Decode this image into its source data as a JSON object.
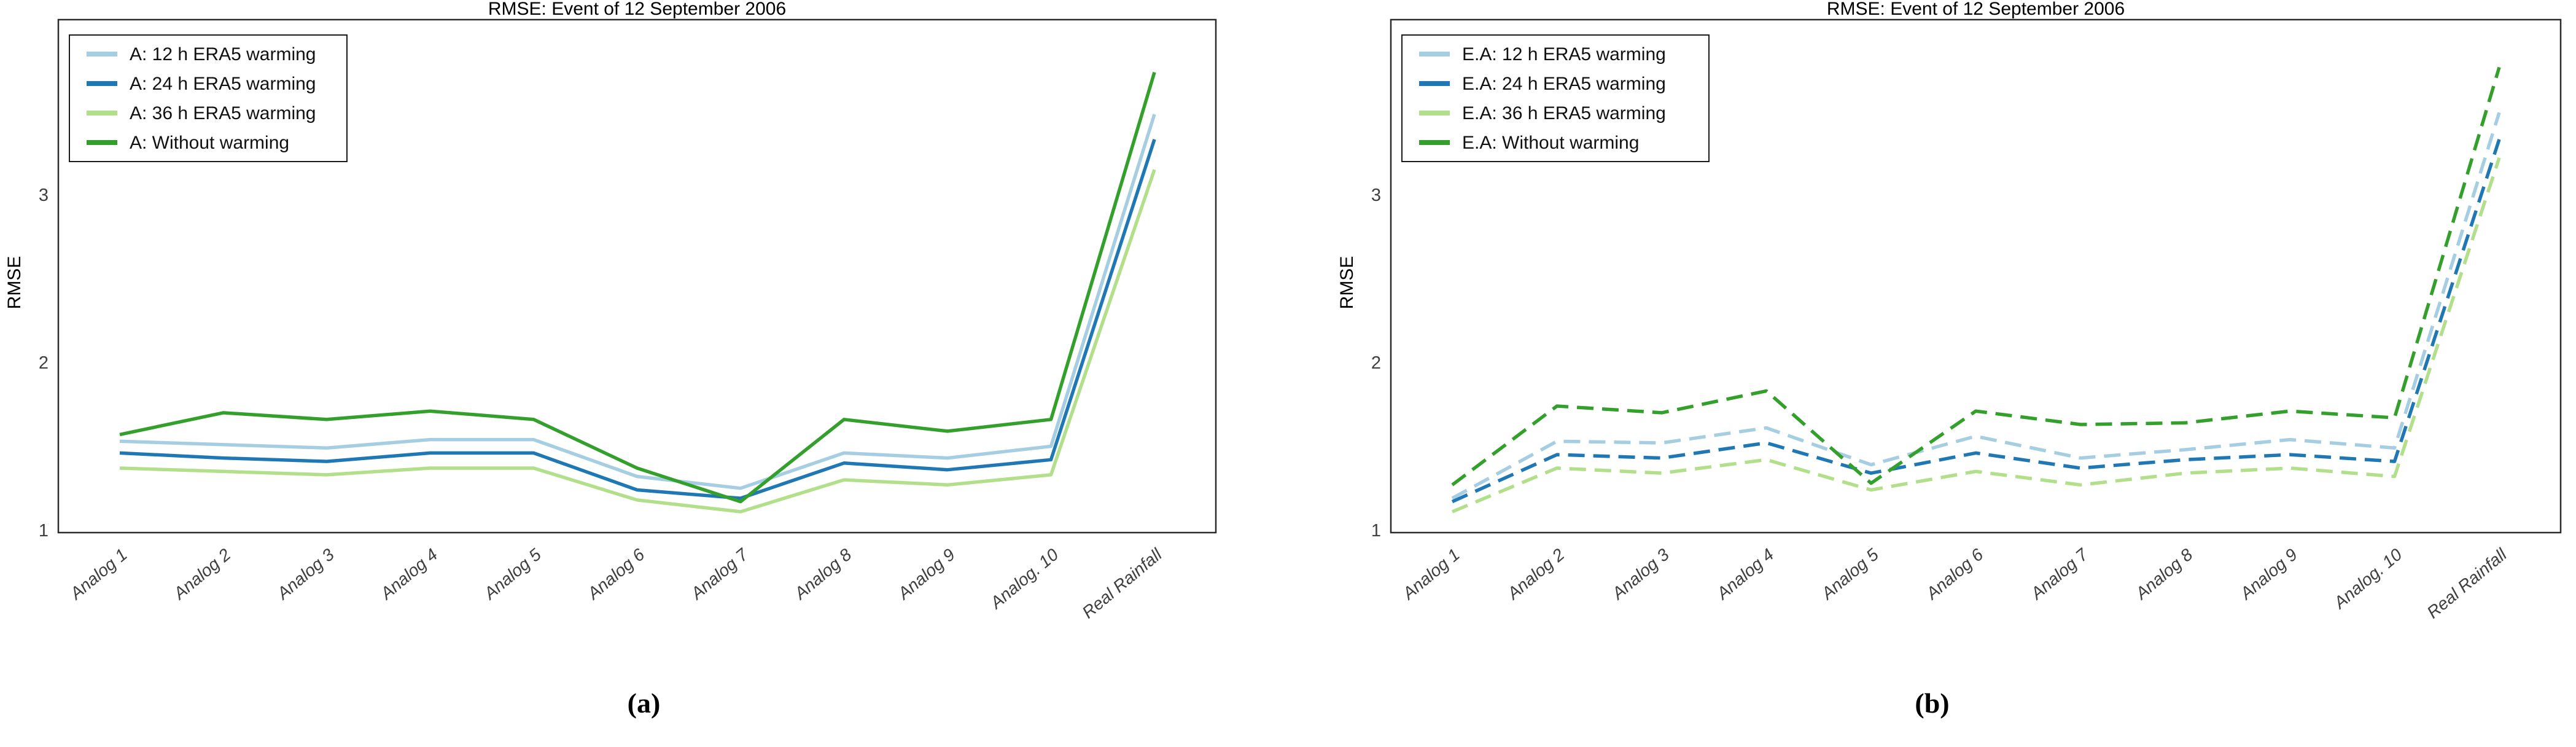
{
  "page": {
    "background": "#ffffff",
    "text_color": "#000000",
    "axis_color": "#2b2b2b",
    "tick_label_color": "#3f3f3f"
  },
  "figure": {
    "captions": {
      "a": "(a)",
      "b": "(b)"
    }
  },
  "chart_data": [
    {
      "type": "line",
      "panel": "a",
      "title": "RMSE: Event of 12 September 2006",
      "ylabel": "RMSE",
      "xlabel": "",
      "grid": false,
      "legend_position": "upper-left",
      "line_style": "solid",
      "categories": [
        "Analog 1",
        "Analog 2",
        "Analog 3",
        "Analog 4",
        "Analog 5",
        "Analog 6",
        "Analog 7",
        "Analog 8",
        "Analog 9",
        "Analog. 10",
        "Real Rainfall"
      ],
      "yticks": [
        1,
        2,
        3
      ],
      "ylim": [
        0.99,
        4.04
      ],
      "series": [
        {
          "name": "A: 12 h ERA5 warming",
          "color": "#a6cee3",
          "values": [
            1.53,
            1.51,
            1.49,
            1.54,
            1.54,
            1.32,
            1.25,
            1.46,
            1.43,
            1.5,
            3.48
          ]
        },
        {
          "name": "A: 24 h ERA5 warming",
          "color": "#1f78b4",
          "values": [
            1.46,
            1.43,
            1.41,
            1.46,
            1.46,
            1.24,
            1.19,
            1.4,
            1.36,
            1.42,
            3.33
          ]
        },
        {
          "name": "A: 36 h ERA5 warming",
          "color": "#b2df8a",
          "values": [
            1.37,
            1.35,
            1.33,
            1.37,
            1.37,
            1.18,
            1.11,
            1.3,
            1.27,
            1.33,
            3.15
          ]
        },
        {
          "name": "A: Without warming",
          "color": "#33a02c",
          "values": [
            1.57,
            1.7,
            1.66,
            1.71,
            1.66,
            1.37,
            1.17,
            1.66,
            1.59,
            1.66,
            3.73
          ]
        }
      ]
    },
    {
      "type": "line",
      "panel": "b",
      "title": "RMSE: Event of 12 September 2006",
      "ylabel": "RMSE",
      "xlabel": "",
      "grid": false,
      "legend_position": "upper-left",
      "line_style": "dashed",
      "categories": [
        "Analog 1",
        "Analog 2",
        "Analog 3",
        "Analog 4",
        "Analog 5",
        "Analog 6",
        "Analog 7",
        "Analog 8",
        "Analog 9",
        "Analog. 10",
        "Real Rainfall"
      ],
      "yticks": [
        1,
        2,
        3
      ],
      "ylim": [
        0.99,
        4.04
      ],
      "series": [
        {
          "name": "E.A: 12 h ERA5 warming",
          "color": "#a6cee3",
          "values": [
            1.19,
            1.53,
            1.52,
            1.61,
            1.39,
            1.56,
            1.43,
            1.48,
            1.54,
            1.49,
            3.49
          ]
        },
        {
          "name": "E.A: 24 h ERA5 warming",
          "color": "#1f78b4",
          "values": [
            1.17,
            1.45,
            1.43,
            1.52,
            1.34,
            1.46,
            1.37,
            1.42,
            1.45,
            1.41,
            3.33
          ]
        },
        {
          "name": "E.A: 36 h ERA5 warming",
          "color": "#b2df8a",
          "values": [
            1.11,
            1.37,
            1.34,
            1.42,
            1.24,
            1.35,
            1.27,
            1.34,
            1.37,
            1.32,
            3.22
          ]
        },
        {
          "name": "E.A: Without warming",
          "color": "#33a02c",
          "values": [
            1.27,
            1.74,
            1.7,
            1.83,
            1.28,
            1.71,
            1.63,
            1.64,
            1.71,
            1.67,
            3.76
          ]
        }
      ]
    }
  ]
}
